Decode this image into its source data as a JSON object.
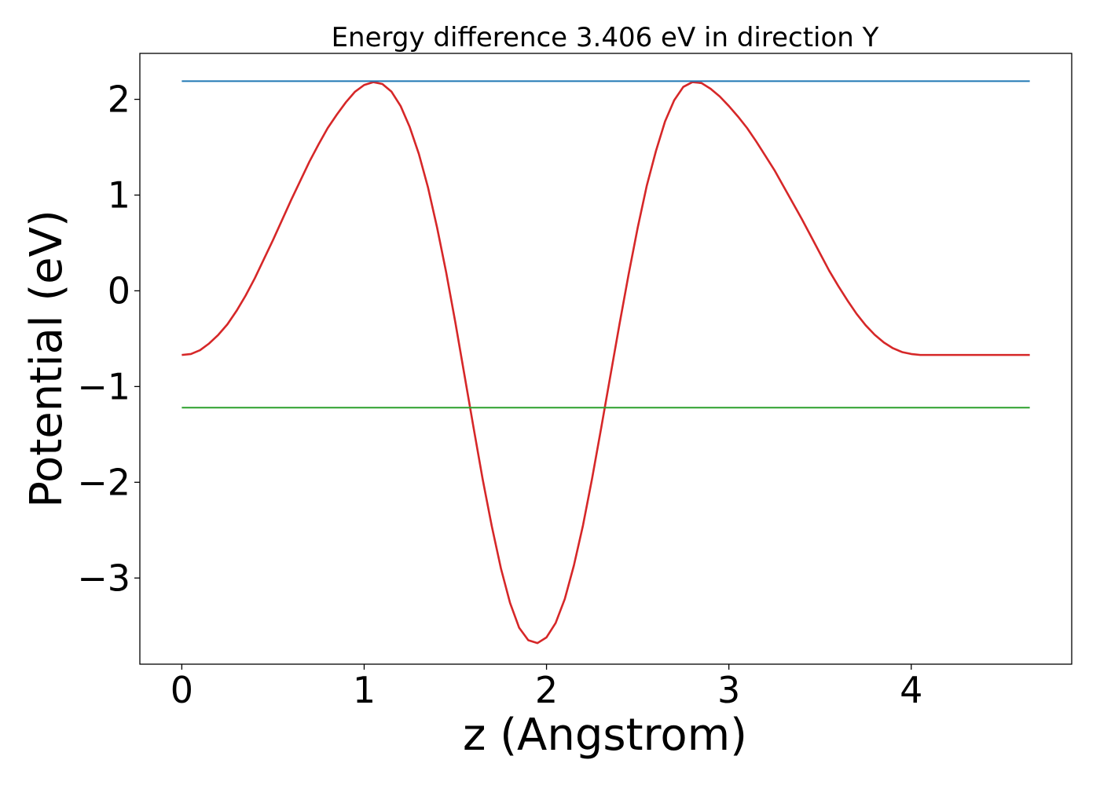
{
  "chart_data": {
    "type": "line",
    "title": "Energy difference 3.406 eV in direction Y",
    "xlabel": "z (Angstrom)",
    "ylabel": "Potential (eV)",
    "xlim": [
      -0.23,
      4.88
    ],
    "ylim": [
      -3.9,
      2.48
    ],
    "xticks": [
      0,
      1,
      2,
      3,
      4
    ],
    "xtick_labels": [
      "0",
      "1",
      "2",
      "3",
      "4"
    ],
    "yticks": [
      2,
      1,
      0,
      -1,
      -2,
      -3
    ],
    "ytick_labels": [
      "2",
      "1",
      "0",
      "−1",
      "−2",
      "−3"
    ],
    "grid": false,
    "legend": "none",
    "series": [
      {
        "color": "#d62728",
        "kind": "curve",
        "x": [
          0.0,
          0.05,
          0.1,
          0.15,
          0.2,
          0.25,
          0.3,
          0.35,
          0.4,
          0.45,
          0.5,
          0.55,
          0.6,
          0.65,
          0.7,
          0.75,
          0.8,
          0.85,
          0.9,
          0.95,
          1.0,
          1.05,
          1.1,
          1.15,
          1.2,
          1.25,
          1.3,
          1.35,
          1.4,
          1.45,
          1.5,
          1.55,
          1.6,
          1.65,
          1.7,
          1.75,
          1.8,
          1.85,
          1.9,
          1.95,
          2.0,
          2.05,
          2.1,
          2.15,
          2.2,
          2.25,
          2.3,
          2.35,
          2.4,
          2.45,
          2.5,
          2.55,
          2.6,
          2.65,
          2.7,
          2.75,
          2.8,
          2.85,
          2.9,
          2.95,
          3.0,
          3.05,
          3.1,
          3.15,
          3.2,
          3.25,
          3.3,
          3.35,
          3.4,
          3.45,
          3.5,
          3.55,
          3.6,
          3.65,
          3.7,
          3.75,
          3.8,
          3.85,
          3.9,
          3.95,
          4.0,
          4.05,
          4.1,
          4.15,
          4.2,
          4.25,
          4.3,
          4.35,
          4.4,
          4.45,
          4.5,
          4.55,
          4.6,
          4.65
        ],
        "y": [
          -0.67,
          -0.66,
          -0.62,
          -0.55,
          -0.46,
          -0.35,
          -0.21,
          -0.05,
          0.13,
          0.33,
          0.53,
          0.74,
          0.95,
          1.15,
          1.35,
          1.53,
          1.7,
          1.84,
          1.97,
          2.08,
          2.15,
          2.18,
          2.16,
          2.08,
          1.93,
          1.71,
          1.43,
          1.08,
          0.66,
          0.19,
          -0.33,
          -0.88,
          -1.43,
          -1.97,
          -2.46,
          -2.9,
          -3.26,
          -3.52,
          -3.65,
          -3.68,
          -3.62,
          -3.47,
          -3.22,
          -2.87,
          -2.45,
          -1.96,
          -1.43,
          -0.89,
          -0.35,
          0.17,
          0.66,
          1.1,
          1.46,
          1.77,
          1.99,
          2.13,
          2.18,
          2.17,
          2.11,
          2.03,
          1.93,
          1.82,
          1.7,
          1.56,
          1.41,
          1.26,
          1.09,
          0.92,
          0.75,
          0.57,
          0.39,
          0.21,
          0.05,
          -0.1,
          -0.24,
          -0.36,
          -0.46,
          -0.54,
          -0.6,
          -0.64,
          -0.66,
          -0.67,
          -0.67,
          -0.67,
          -0.67,
          -0.67,
          -0.67,
          -0.67,
          -0.67,
          -0.67,
          -0.67,
          -0.67,
          -0.67,
          -0.67
        ]
      },
      {
        "color": "#1f77b4",
        "kind": "hline",
        "x": [
          0.0,
          4.65
        ],
        "y": [
          2.19,
          2.19
        ]
      },
      {
        "color": "#2ca02c",
        "kind": "hline",
        "x": [
          0.0,
          4.65
        ],
        "y": [
          -1.22,
          -1.22
        ]
      }
    ]
  }
}
